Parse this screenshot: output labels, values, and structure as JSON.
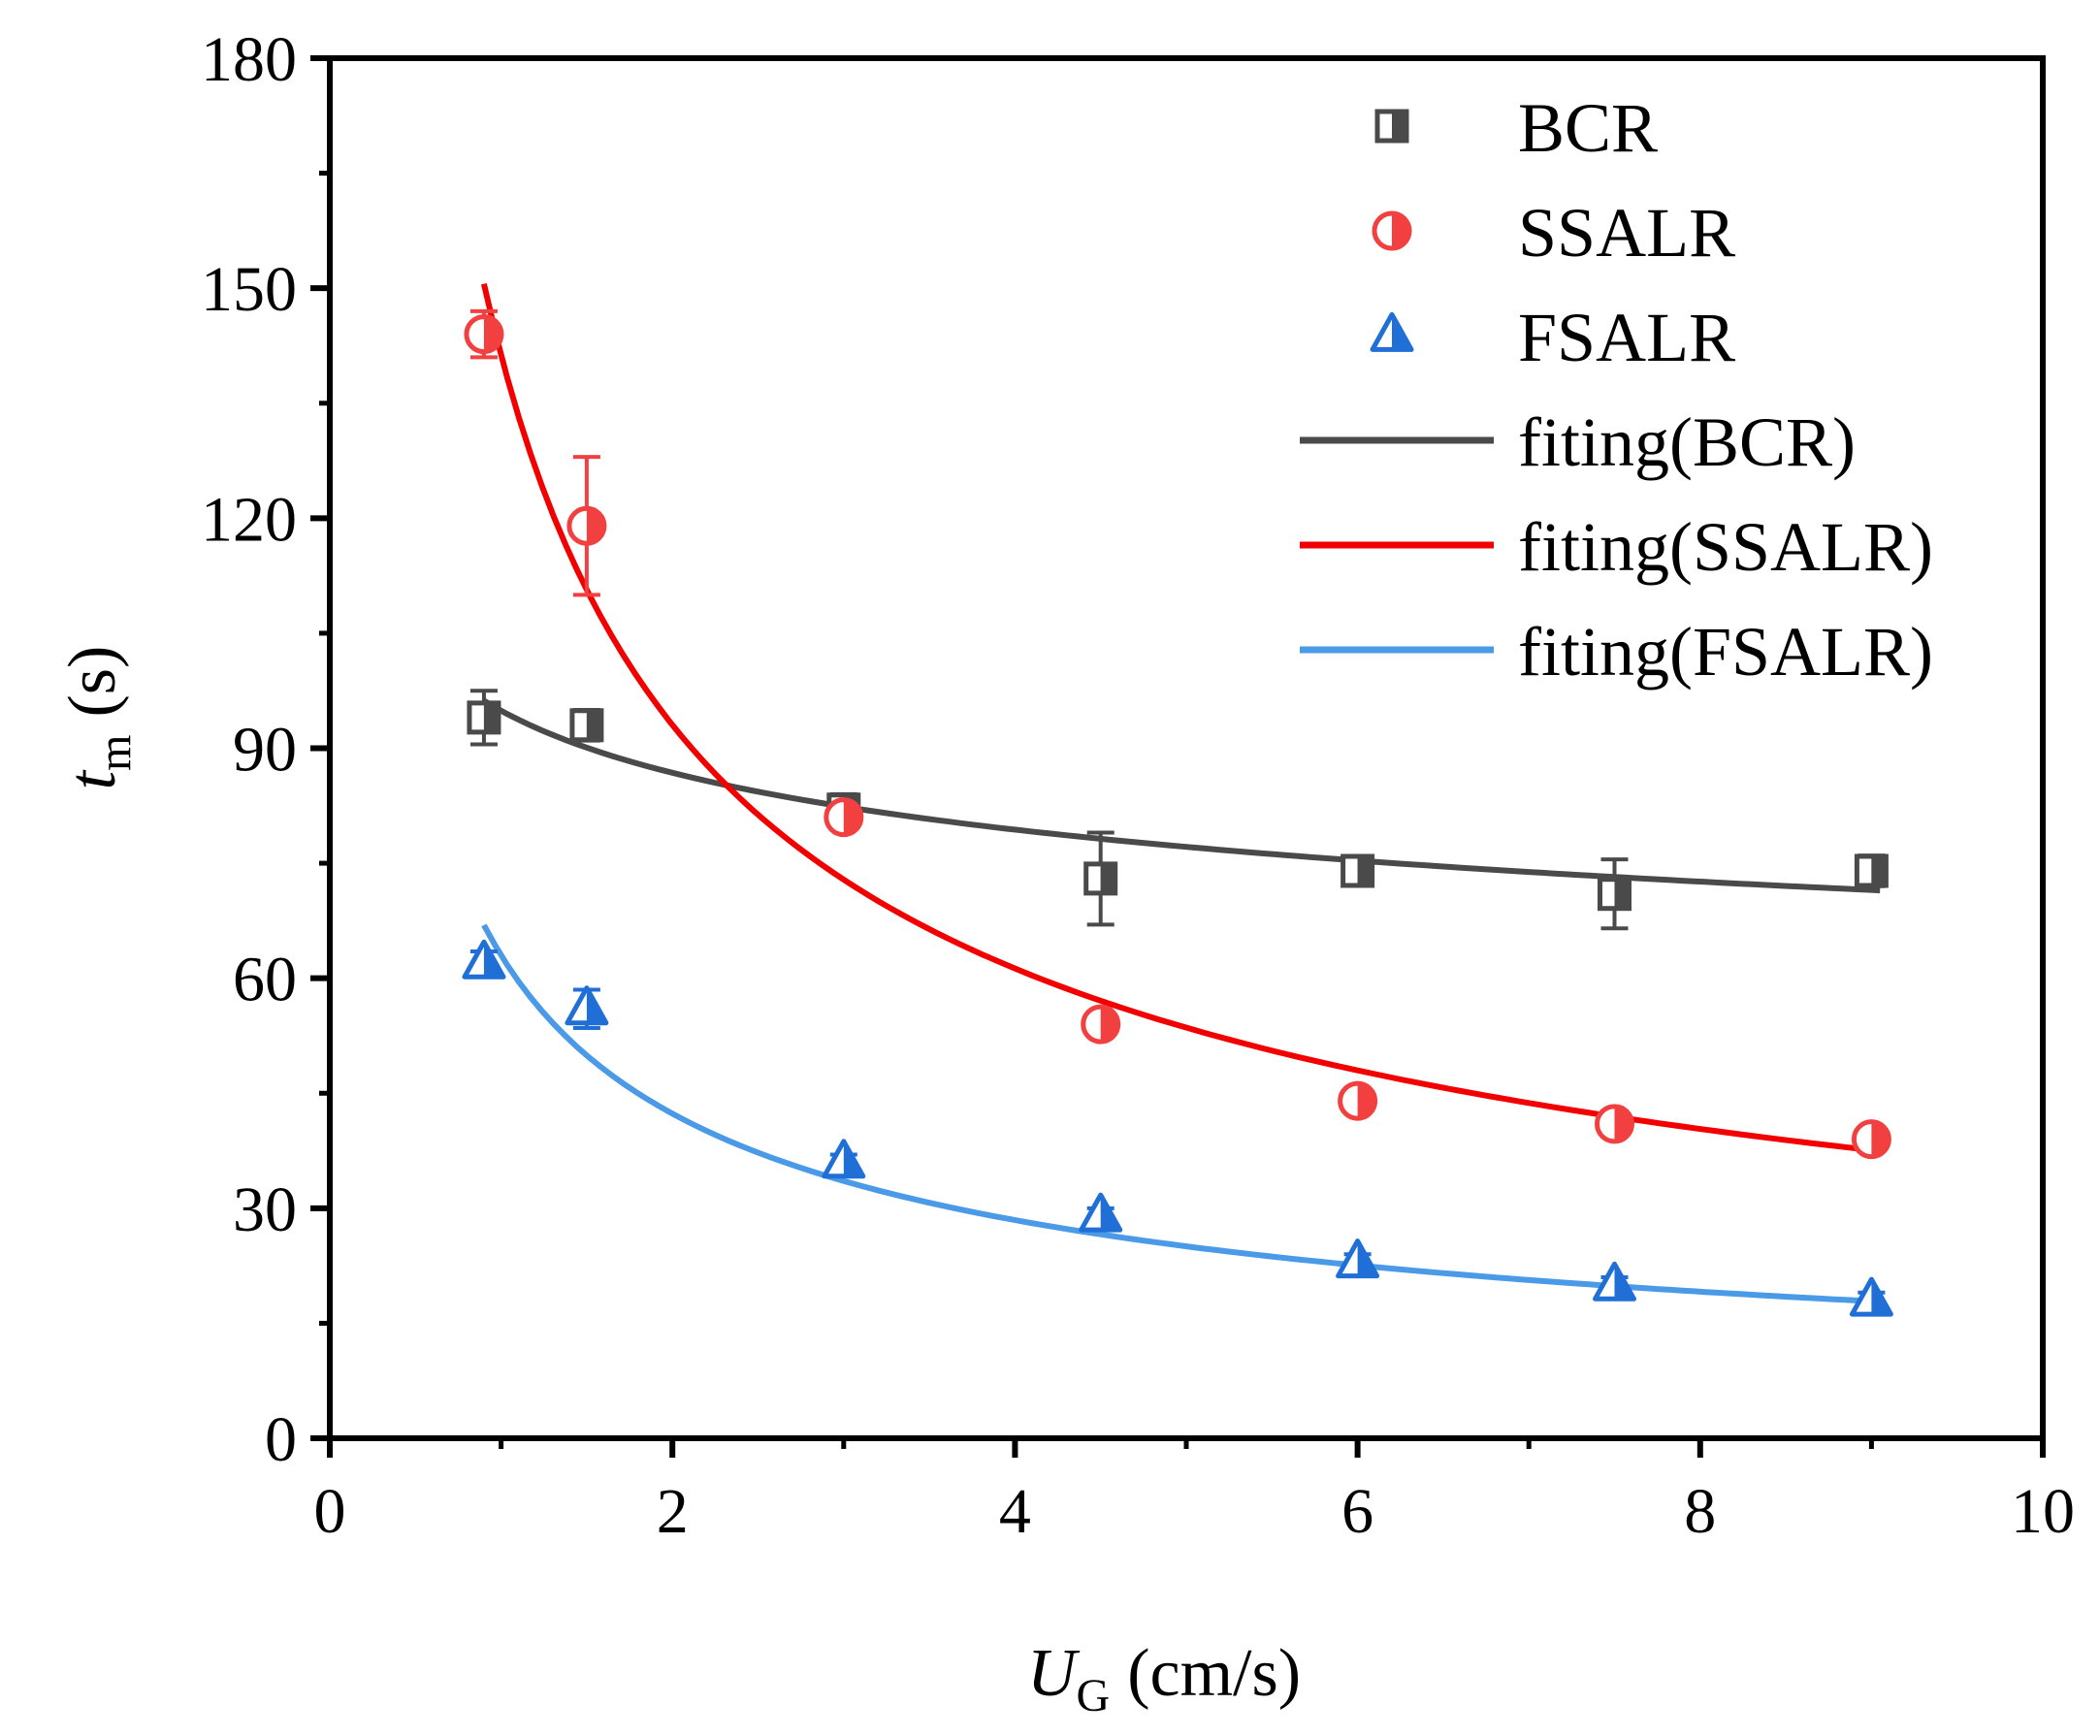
{
  "chart_data": {
    "type": "scatter",
    "xlabel": {
      "var": "U",
      "sub": "G",
      "unit": "(cm/s)"
    },
    "ylabel": {
      "var": "t",
      "sub": "m",
      "unit": "(s)"
    },
    "xlim": [
      0,
      10
    ],
    "ylim": [
      0,
      180
    ],
    "xticks": [
      0,
      2,
      4,
      6,
      8,
      10
    ],
    "xtick_labels": [
      "0",
      "2",
      "4",
      "6",
      "8",
      "10"
    ],
    "yticks": [
      0,
      30,
      60,
      90,
      120,
      150,
      180
    ],
    "ytick_labels": [
      "0",
      "30",
      "60",
      "90",
      "120",
      "150",
      "180"
    ],
    "legend_position": "top-right",
    "series": [
      {
        "name": "BCR",
        "marker": "square-half",
        "color": "#4a4a4a",
        "x": [
          0.9,
          1.5,
          3.0,
          4.5,
          6.0,
          7.5,
          9.0
        ],
        "y": [
          94,
          93,
          82,
          73,
          74,
          71,
          74
        ],
        "err": [
          3.5,
          2,
          2,
          6,
          1.5,
          4.5,
          2
        ]
      },
      {
        "name": "SSALR",
        "marker": "circle-half",
        "color": "#f24040",
        "x": [
          0.9,
          1.5,
          3.0,
          4.5,
          6.0,
          7.5,
          9.0
        ],
        "y": [
          144,
          119,
          81,
          54,
          44,
          41,
          39
        ],
        "err": [
          3,
          9,
          1.5,
          1,
          1,
          1,
          1
        ]
      },
      {
        "name": "FSALR",
        "marker": "triangle-half",
        "color": "#1f6fd6",
        "x": [
          0.9,
          1.5,
          3.0,
          4.5,
          6.0,
          7.5,
          9.0
        ],
        "y": [
          62,
          56,
          36,
          29,
          23,
          20,
          18
        ],
        "err": [
          1.5,
          2.5,
          1,
          1,
          1,
          1,
          1
        ]
      }
    ],
    "fits": [
      {
        "name": "fiting(BCR)",
        "color": "#4a4a4a",
        "a": 94.9,
        "b": 0.1288,
        "x_range": [
          0.9,
          9.05
        ]
      },
      {
        "name": "fiting(SSALR)",
        "color": "#f20000",
        "a": 141.3,
        "b": 0.6028,
        "x_range": [
          0.9,
          9.05
        ]
      },
      {
        "name": "fiting(FSALR)",
        "color": "#4a9ae8",
        "a": 63.0,
        "b": 0.5734,
        "x_range": [
          0.9,
          9.05
        ]
      }
    ]
  }
}
